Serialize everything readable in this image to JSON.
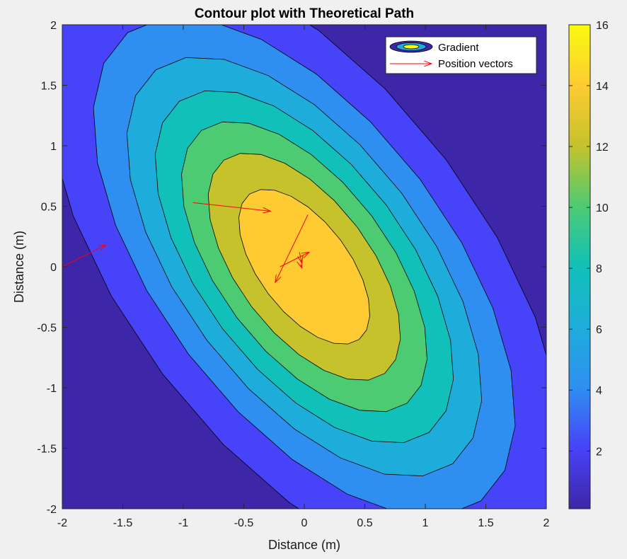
{
  "chart_data": {
    "type": "contour",
    "title": "Contour plot with Theoretical Path",
    "xlabel": "Distance (m)",
    "ylabel": "Distance (m)",
    "xlim": [
      -2,
      2
    ],
    "ylim": [
      -2,
      2
    ],
    "xticks": [
      -2,
      -1.5,
      -1,
      -0.5,
      0,
      0.5,
      1,
      1.5,
      2
    ],
    "yticks": [
      -2,
      -1.5,
      -1,
      -0.5,
      0,
      0.5,
      1,
      1.5,
      2
    ],
    "xtick_labels": [
      "-2",
      "-1.5",
      "-1",
      "-0.5",
      "0",
      "0.5",
      "1",
      "1.5",
      "2"
    ],
    "ytick_labels": [
      "-2",
      "-1.5",
      "-1",
      "-0.5",
      "0",
      "0.5",
      "1",
      "1.5",
      "2"
    ],
    "grid": false,
    "legend": {
      "placement": "top-right",
      "entries": [
        "Gradient",
        "Position vectors"
      ]
    },
    "colorbar": {
      "range": [
        0.1,
        16
      ],
      "ticks": [
        2,
        4,
        6,
        8,
        10,
        12,
        14,
        16
      ],
      "tick_labels": [
        "2",
        "4",
        "6",
        "8",
        "10",
        "12",
        "14",
        "16"
      ]
    },
    "contour_levels": [
      2,
      4,
      6,
      8,
      10,
      12,
      14
    ],
    "contour_field": {
      "form": "z = A * exp(-(a*x^2 + b*x*y + c*y^2))",
      "A": 16,
      "a": 0.7,
      "b": 0.7,
      "c": 0.5
    },
    "position_vectors": [
      {
        "x": -2.0,
        "y": 0.0,
        "u": 0.36,
        "v": 0.18
      },
      {
        "x": -0.92,
        "y": 0.53,
        "u": 0.64,
        "v": -0.07
      },
      {
        "x": 0.03,
        "y": 0.43,
        "u": -0.27,
        "v": -0.56
      },
      {
        "x": -0.2,
        "y": 0.0,
        "u": 0.24,
        "v": 0.12
      },
      {
        "x": -0.04,
        "y": 0.12,
        "u": 0.02,
        "v": -0.09
      },
      {
        "x": -0.03,
        "y": 0.02,
        "u": 0.01,
        "v": -0.03
      }
    ],
    "colors": {
      "parula": [
        "#3e26a8",
        "#4743f8",
        "#2f8ff0",
        "#1eadda",
        "#11c0b9",
        "#4dcb73",
        "#c5c22c",
        "#fecb32",
        "#f9fb0e"
      ],
      "arrow": "#ff0000",
      "axes_bg": "#ffffff",
      "figure_bg": "#f0f0f0"
    }
  }
}
